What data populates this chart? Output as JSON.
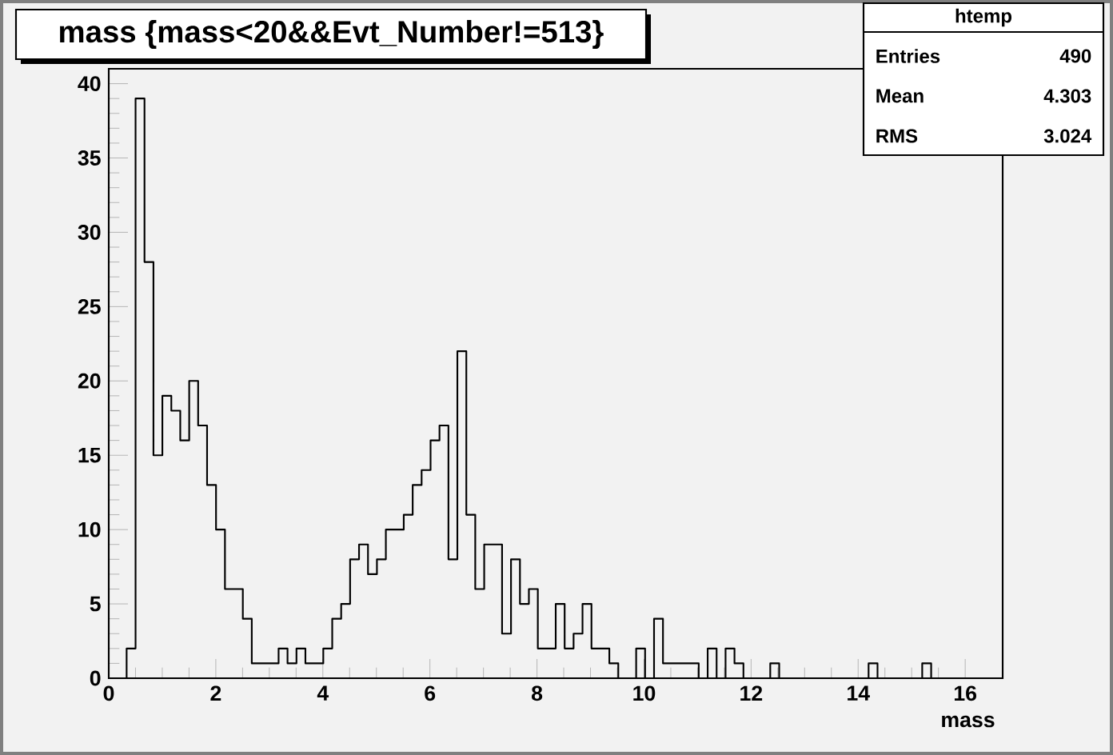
{
  "chart_data": {
    "type": "histogram",
    "title": "mass {mass<20&&Evt_Number!=513}",
    "xlabel": "mass",
    "annotations": [
      "htemp",
      "Entries",
      "490",
      "Mean",
      "4.303",
      "RMS",
      "3.024"
    ],
    "bins": [
      0,
      0.167,
      0.334,
      0.501,
      0.668,
      0.835,
      1.002,
      1.169,
      1.336,
      1.503,
      1.67,
      1.837,
      2.004,
      2.171,
      2.338,
      2.505,
      2.672,
      2.839,
      3.006,
      3.173,
      3.34,
      3.507,
      3.674,
      3.841,
      4.008,
      4.175,
      4.342,
      4.509,
      4.676,
      4.843,
      5.01,
      5.177,
      5.344,
      5.511,
      5.678,
      5.845,
      6.012,
      6.179,
      6.346,
      6.513,
      6.68,
      6.847,
      7.014,
      7.181,
      7.348,
      7.515,
      7.682,
      7.849,
      8.016,
      8.183,
      8.35,
      8.517,
      8.684,
      8.851,
      9.018,
      9.185,
      9.352,
      9.519,
      9.686,
      9.853,
      10.02,
      10.187,
      10.354,
      10.521,
      10.688,
      10.855,
      11.022,
      11.189,
      11.356,
      11.523,
      11.69,
      11.857,
      12.024,
      12.191,
      12.358,
      12.525,
      12.692,
      12.859,
      13.026,
      13.193,
      13.36,
      13.527,
      13.694,
      13.861,
      14.028,
      14.195,
      14.362,
      14.529,
      14.696,
      14.863,
      15.03,
      15.197,
      15.364,
      15.531,
      15.698,
      15.865,
      16.032,
      16.199,
      16.366,
      16.533,
      16.7
    ],
    "values": [
      0,
      0,
      2,
      39,
      28,
      15,
      19,
      18,
      16,
      20,
      17,
      13,
      10,
      6,
      6,
      4,
      1,
      1,
      1,
      2,
      1,
      2,
      1,
      1,
      2,
      4,
      5,
      8,
      9,
      7,
      8,
      10,
      10,
      11,
      13,
      14,
      16,
      17,
      8,
      22,
      11,
      6,
      9,
      9,
      3,
      8,
      5,
      6,
      2,
      2,
      5,
      2,
      3,
      5,
      2,
      2,
      1,
      0,
      0,
      2,
      0,
      4,
      1,
      1,
      1,
      1,
      0,
      2,
      0,
      2,
      1,
      0,
      0,
      0,
      1,
      0,
      0,
      0,
      0,
      0,
      0,
      0,
      0,
      0,
      0,
      1,
      0,
      0,
      0,
      0,
      0,
      1,
      0,
      0,
      0,
      0,
      0,
      0,
      0,
      0
    ],
    "color": "#000000",
    "xlim": [
      0,
      16.7
    ],
    "ylim": [
      0,
      41
    ],
    "xticks": [
      0,
      2,
      4,
      6,
      8,
      10,
      12,
      14,
      16
    ],
    "yticks": [
      0,
      5,
      10,
      15,
      20,
      25,
      30,
      35,
      40
    ]
  }
}
